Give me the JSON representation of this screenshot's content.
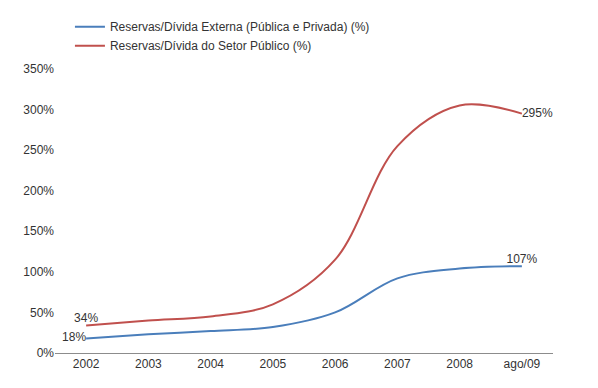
{
  "chart_data": {
    "type": "line",
    "categories": [
      "2002",
      "2003",
      "2004",
      "2005",
      "2006",
      "2007",
      "2008",
      "ago/09"
    ],
    "series": [
      {
        "name": "Reservas/Dívida Externa (Pública e Privada) (%)",
        "color": "#4a7ebb",
        "values": [
          18,
          23,
          27,
          32,
          50,
          92,
          104,
          107
        ],
        "value_labels": [
          "18%",
          null,
          null,
          null,
          null,
          null,
          null,
          "107%"
        ]
      },
      {
        "name": "Reservas/Dívida do Setor Público (%)",
        "color": "#c0504d",
        "values": [
          34,
          40,
          45,
          60,
          115,
          255,
          305,
          295
        ],
        "value_labels": [
          "34%",
          null,
          null,
          null,
          null,
          null,
          null,
          "295%"
        ]
      }
    ],
    "ylim": [
      0,
      350
    ],
    "yticks": [
      {
        "value": 0,
        "label": "0%"
      },
      {
        "value": 50,
        "label": "50%"
      },
      {
        "value": 100,
        "label": "100%"
      },
      {
        "value": 150,
        "label": "150%"
      },
      {
        "value": 200,
        "label": "200%"
      },
      {
        "value": 250,
        "label": "250%"
      },
      {
        "value": 300,
        "label": "300%"
      },
      {
        "value": 350,
        "label": "350%"
      }
    ],
    "grid": false,
    "legend": "top left",
    "data_labels": true
  }
}
